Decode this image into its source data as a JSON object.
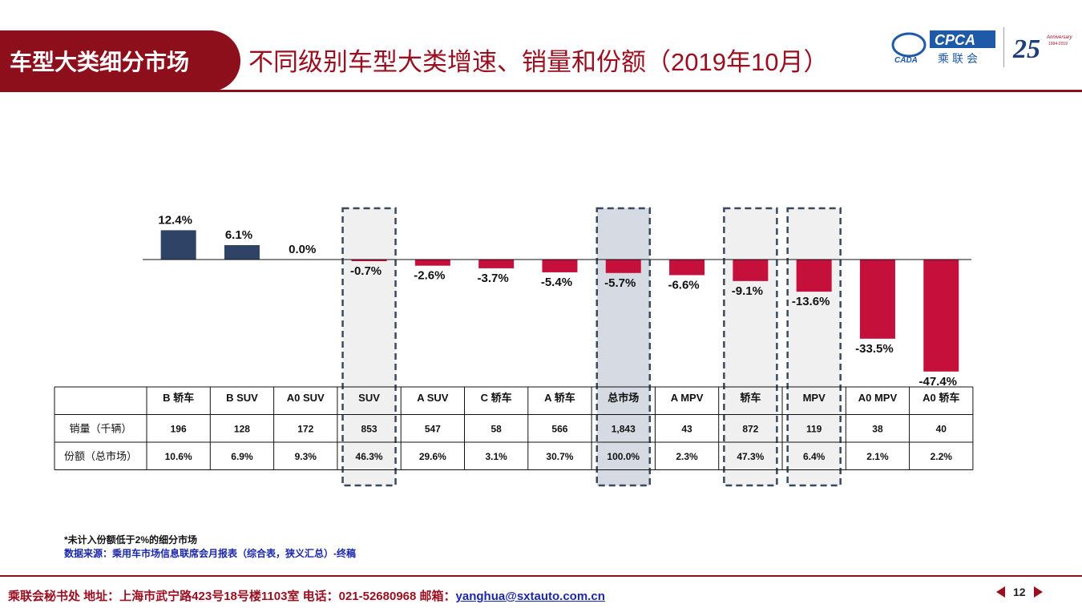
{
  "header": {
    "section_title": "车型大类细分市场",
    "subtitle": "不同级别车型大类增速、销量和份额（2019年10月）"
  },
  "logos": {
    "cpca_text": "CPCA",
    "cada_text": "CADA",
    "cpca_cn": "乘联会",
    "anniversary_number": "25",
    "anniversary_text": "Anniversary",
    "anniversary_years": "1994-2019"
  },
  "colors": {
    "brand_red": "#8c0f1b",
    "positive_bar": "#2e4365",
    "negative_bar": "#c4103a",
    "highlight_box": "#f0f0f0",
    "highlight_total": "#d6dbe3",
    "dash_border": "#3a4a5e"
  },
  "chart_data": {
    "type": "bar",
    "categories": [
      "B 轿车",
      "B SUV",
      "A0 SUV",
      "SUV",
      "A SUV",
      "C 轿车",
      "A 轿车",
      "总市场",
      "A MPV",
      "轿车",
      "MPV",
      "A0 MPV",
      "A0 轿车"
    ],
    "values": [
      12.4,
      6.1,
      0.0,
      -0.7,
      -2.6,
      -3.7,
      -5.4,
      -5.7,
      -6.6,
      -9.1,
      -13.6,
      -33.5,
      -47.4
    ],
    "value_labels": [
      "12.4%",
      "6.1%",
      "0.0%",
      "-0.7%",
      "-2.6%",
      "-3.7%",
      "-5.4%",
      "-5.7%",
      "-6.6%",
      "-9.1%",
      "-13.6%",
      "-33.5%",
      "-47.4%"
    ],
    "highlighted": [
      "SUV",
      "总市场",
      "轿车",
      "MPV"
    ],
    "highlight_total": "总市场",
    "unit": "%",
    "table": {
      "rows": [
        {
          "label": "销量（千辆）",
          "values": [
            "196",
            "128",
            "172",
            "853",
            "547",
            "58",
            "566",
            "1,843",
            "43",
            "872",
            "119",
            "38",
            "40"
          ]
        },
        {
          "label": "份额（总市场）",
          "values": [
            "10.6%",
            "6.9%",
            "9.3%",
            "46.3%",
            "29.6%",
            "3.1%",
            "30.7%",
            "100.0%",
            "2.3%",
            "47.3%",
            "6.4%",
            "2.1%",
            "2.2%"
          ]
        }
      ]
    }
  },
  "notes": {
    "footnote": "*未计入份额低于2%的细分市场",
    "source": "数据来源：乘用车市场信息联席会月报表（综合表，狭义汇总）-终稿"
  },
  "footer": {
    "text": "乘联会秘书处   地址：上海市武宁路423号18号楼1103室  电话：021-52680968   邮箱：",
    "email": "yanghua@sxtauto.com.cn",
    "page_number": "12"
  }
}
